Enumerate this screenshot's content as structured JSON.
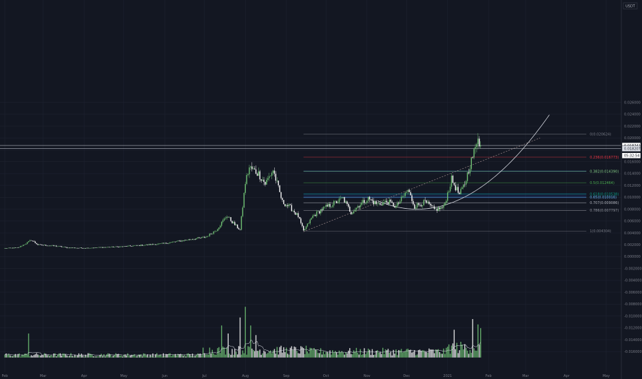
{
  "chart_data": {
    "type": "candlestick",
    "currency": "USDT",
    "colors": {
      "background": "#131722",
      "up": "#6fbf73",
      "down": "#f5f5f5",
      "volume_up": "#6fbf73",
      "volume_down": "#f5f5f5",
      "grid": "#1e2230",
      "axis_text": "#787b86",
      "curve": "#d1d4dc",
      "trendline": "#a08c8c"
    },
    "y_axis": {
      "ylim": [
        -0.017,
        0.0276
      ],
      "ticks": [
        "0.026000",
        "0.024000",
        "0.022000",
        "0.020000",
        "0.018000",
        "0.016000",
        "0.014000",
        "0.012000",
        "0.010000",
        "0.008000",
        "0.006000",
        "0.004000",
        "0.002000",
        "0.000000",
        "-0.002000",
        "-0.004000",
        "-0.006000",
        "-0.008000",
        "-0.010000",
        "-0.012000",
        "-0.014000",
        "-0.016000"
      ],
      "tick_values": [
        0.026,
        0.024,
        0.022,
        0.02,
        0.018,
        0.016,
        0.014,
        0.012,
        0.01,
        0.008,
        0.006,
        0.004,
        0.002,
        0.0,
        -0.002,
        -0.004,
        -0.006,
        -0.008,
        -0.01,
        -0.012,
        -0.014,
        -0.016
      ]
    },
    "x_axis": {
      "ticks": [
        "Feb",
        "Mar",
        "Apr",
        "May",
        "Jun",
        "Jul",
        "Aug",
        "Sep",
        "Oct",
        "Nov",
        "Dec",
        "2021",
        "Feb",
        "Mar",
        "Apr",
        "May"
      ],
      "tick_days": [
        0,
        29,
        60,
        90,
        121,
        151,
        182,
        213,
        243,
        274,
        304,
        335,
        366,
        394,
        425,
        455
      ]
    },
    "price_key_points": [
      {
        "day": 0,
        "price": 0.0014
      },
      {
        "day": 10,
        "price": 0.0015
      },
      {
        "day": 15,
        "price": 0.0021
      },
      {
        "day": 20,
        "price": 0.0028
      },
      {
        "day": 25,
        "price": 0.002
      },
      {
        "day": 38,
        "price": 0.0018
      },
      {
        "day": 48,
        "price": 0.0015
      },
      {
        "day": 60,
        "price": 0.00145
      },
      {
        "day": 90,
        "price": 0.0017
      },
      {
        "day": 120,
        "price": 0.0022
      },
      {
        "day": 140,
        "price": 0.0029
      },
      {
        "day": 152,
        "price": 0.0033
      },
      {
        "day": 160,
        "price": 0.0045
      },
      {
        "day": 168,
        "price": 0.0069
      },
      {
        "day": 173,
        "price": 0.0056
      },
      {
        "day": 178,
        "price": 0.0045
      },
      {
        "day": 182,
        "price": 0.0125
      },
      {
        "day": 185,
        "price": 0.015
      },
      {
        "day": 192,
        "price": 0.014
      },
      {
        "day": 197,
        "price": 0.0123
      },
      {
        "day": 203,
        "price": 0.0146
      },
      {
        "day": 210,
        "price": 0.0092
      },
      {
        "day": 216,
        "price": 0.0083
      },
      {
        "day": 222,
        "price": 0.0068
      },
      {
        "day": 226,
        "price": 0.0043
      },
      {
        "day": 233,
        "price": 0.0068
      },
      {
        "day": 240,
        "price": 0.008
      },
      {
        "day": 250,
        "price": 0.0091
      },
      {
        "day": 256,
        "price": 0.0098
      },
      {
        "day": 262,
        "price": 0.0074
      },
      {
        "day": 268,
        "price": 0.0087
      },
      {
        "day": 275,
        "price": 0.0098
      },
      {
        "day": 282,
        "price": 0.0088
      },
      {
        "day": 290,
        "price": 0.0093
      },
      {
        "day": 296,
        "price": 0.0084
      },
      {
        "day": 305,
        "price": 0.0112
      },
      {
        "day": 310,
        "price": 0.0085
      },
      {
        "day": 318,
        "price": 0.0092
      },
      {
        "day": 325,
        "price": 0.0079
      },
      {
        "day": 332,
        "price": 0.0083
      },
      {
        "day": 338,
        "price": 0.013
      },
      {
        "day": 344,
        "price": 0.0104
      },
      {
        "day": 348,
        "price": 0.0123
      },
      {
        "day": 352,
        "price": 0.0155
      },
      {
        "day": 356,
        "price": 0.0182
      },
      {
        "day": 358,
        "price": 0.0206
      },
      {
        "day": 360,
        "price": 0.0182
      }
    ],
    "current_price": "0.018741",
    "price_tags": [
      {
        "label": "0.018741",
        "price": 0.018741,
        "style": "primary"
      },
      {
        "label": "0.018207",
        "price": 0.018207,
        "style": "secondary"
      },
      {
        "label": "05:32:54",
        "price": 0.01703,
        "style": "timer"
      }
    ],
    "horizontal_lines": [
      0.018741,
      0.018207
    ],
    "fibonacci": {
      "start_day": 226,
      "end_day": 440,
      "levels": [
        {
          "label": "0(0.020624)",
          "ratio": 0,
          "price": 0.020624,
          "color": "#787b86"
        },
        {
          "label": "0.236(0.016773)",
          "ratio": 0.236,
          "price": 0.016773,
          "color": "#f23645"
        },
        {
          "label": "0.382(0.014390)",
          "ratio": 0.382,
          "price": 0.01439,
          "color": "#81c784"
        },
        {
          "label": "0.5(0.012464)",
          "ratio": 0.5,
          "price": 0.012464,
          "color": "#4caf50"
        },
        {
          "label": "0.618(0.010538)",
          "ratio": 0.618,
          "price": 0.010538,
          "color": "#089981"
        },
        {
          "label": "0.65(0.010016)",
          "ratio": 0.65,
          "price": 0.010016,
          "color": "#64b5f6"
        },
        {
          "label": "0.707(0.009086)",
          "ratio": 0.707,
          "price": 0.009086,
          "color": "#b2b5be"
        },
        {
          "label": "0.786(0.007797)",
          "ratio": 0.786,
          "price": 0.007797,
          "color": "#9598a1"
        },
        {
          "label": "1(0.004304)",
          "ratio": 1,
          "price": 0.004304,
          "color": "#787b86"
        }
      ],
      "bands": [
        {
          "from": 0.01439,
          "to": 0.01439,
          "color": "#2962ff"
        },
        {
          "from": 0.010538,
          "to": 0.010016,
          "color": "#2962ff"
        }
      ]
    },
    "trendline": {
      "from_day": 226,
      "from_price": 0.0042,
      "to_day": 405,
      "to_price": 0.02
    },
    "parabolic_curve": {
      "vertex_day": 312,
      "vertex_price": 0.008,
      "end_day": 412,
      "end_price": 0.0239
    },
    "volume": {
      "region_top_price": -0.008,
      "region_bottom_price": -0.017,
      "spikes": [
        {
          "day": 18,
          "h": 0.45
        },
        {
          "day": 164,
          "h": 0.6
        },
        {
          "day": 169,
          "h": 0.45
        },
        {
          "day": 178,
          "h": 0.75
        },
        {
          "day": 182,
          "h": 0.95
        },
        {
          "day": 186,
          "h": 0.6
        },
        {
          "day": 190,
          "h": 0.42
        },
        {
          "day": 340,
          "h": 0.52
        },
        {
          "day": 354,
          "h": 0.72
        },
        {
          "day": 358,
          "h": 0.62
        },
        {
          "day": 360,
          "h": 0.55
        }
      ]
    }
  }
}
